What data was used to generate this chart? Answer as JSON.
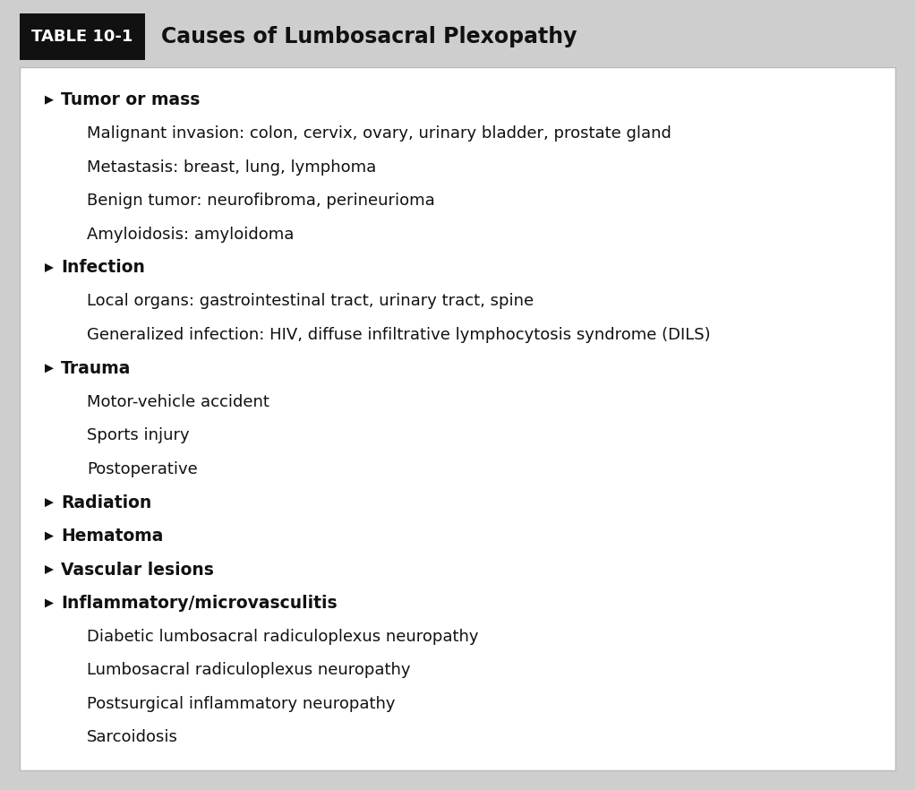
{
  "title_box_text": "TABLE 10-1",
  "title_text": "Causes of Lumbosacral Plexopathy",
  "bg_outer": "#cecece",
  "bg_inner": "#ffffff",
  "title_box_bg": "#111111",
  "title_box_fg": "#ffffff",
  "title_fg": "#111111",
  "content_fg": "#111111",
  "fig_width": 10.22,
  "fig_height": 8.82,
  "dpi": 100,
  "items": [
    {
      "type": "header",
      "text": "Tumor or mass"
    },
    {
      "type": "sub",
      "text": "Malignant invasion: colon, cervix, ovary, urinary bladder, prostate gland"
    },
    {
      "type": "sub",
      "text": "Metastasis: breast, lung, lymphoma"
    },
    {
      "type": "sub",
      "text": "Benign tumor: neurofibroma, perineurioma"
    },
    {
      "type": "sub",
      "text": "Amyloidosis: amyloidoma"
    },
    {
      "type": "header",
      "text": "Infection"
    },
    {
      "type": "sub",
      "text": "Local organs: gastrointestinal tract, urinary tract, spine"
    },
    {
      "type": "sub",
      "text": "Generalized infection: HIV, diffuse infiltrative lymphocytosis syndrome (DILS)"
    },
    {
      "type": "header",
      "text": "Trauma"
    },
    {
      "type": "sub",
      "text": "Motor-vehicle accident"
    },
    {
      "type": "sub",
      "text": "Sports injury"
    },
    {
      "type": "sub",
      "text": "Postoperative"
    },
    {
      "type": "header",
      "text": "Radiation"
    },
    {
      "type": "header",
      "text": "Hematoma"
    },
    {
      "type": "header",
      "text": "Vascular lesions"
    },
    {
      "type": "header",
      "text": "Inflammatory/microvasculitis"
    },
    {
      "type": "sub",
      "text": "Diabetic lumbosacral radiculoplexus neuropathy"
    },
    {
      "type": "sub",
      "text": "Lumbosacral radiculoplexus neuropathy"
    },
    {
      "type": "sub",
      "text": "Postsurgical inflammatory neuropathy"
    },
    {
      "type": "sub",
      "text": "Sarcoidosis"
    }
  ]
}
